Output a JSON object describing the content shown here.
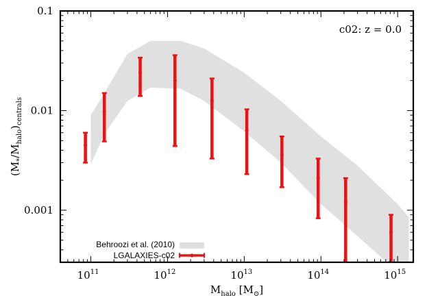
{
  "chart_data": {
    "type": "line",
    "annotation": "c02: z = 0.0",
    "xlabel": {
      "main": "M",
      "sub": "halo",
      "bracket_open": " [M",
      "sub2": "⊙",
      "bracket_close": "]"
    },
    "ylabel": {
      "open": "(M",
      "sub1": "*",
      "mid": "/M",
      "sub2": "halo",
      "close": ")",
      "sub3": "centrals"
    },
    "xscale": "log",
    "yscale": "log",
    "xlim": [
      40000000000.0,
      1600000000000000.0
    ],
    "ylim": [
      0.0003,
      0.1
    ],
    "x_ticks": [
      {
        "value": 100000000000.0,
        "base": "10",
        "exp": "11"
      },
      {
        "value": 1000000000000.0,
        "base": "10",
        "exp": "12"
      },
      {
        "value": 10000000000000.0,
        "base": "10",
        "exp": "13"
      },
      {
        "value": 100000000000000.0,
        "base": "10",
        "exp": "14"
      },
      {
        "value": 1000000000000000.0,
        "base": "10",
        "exp": "15"
      }
    ],
    "y_ticks": [
      {
        "value": 0.001,
        "label": "0.001"
      },
      {
        "value": 0.01,
        "label": "0.01"
      },
      {
        "value": 0.1,
        "label": "0.1"
      }
    ],
    "legend_position": "bottom-left",
    "band": {
      "name": "Behroozi et al. (2010)",
      "color": "#e0e0e0",
      "x": [
        100000000000.0,
        150000000000.0,
        300000000000.0,
        600000000000.0,
        1500000000000.0,
        3000000000000.0,
        10000000000000.0,
        30000000000000.0,
        100000000000000.0,
        300000000000000.0,
        1000000000000000.0,
        1400000000000000.0
      ],
      "upper": [
        0.009,
        0.015,
        0.037,
        0.05,
        0.05,
        0.042,
        0.024,
        0.0125,
        0.0055,
        0.0028,
        0.00115,
        0.00085
      ],
      "lower": [
        0.0029,
        0.0058,
        0.0125,
        0.017,
        0.0165,
        0.0125,
        0.0062,
        0.003,
        0.00115,
        0.00055,
        0.00024,
        0.00018
      ]
    },
    "series": [
      {
        "name": "LGALAXIES-c02",
        "color": "#ee1111",
        "points": [
          {
            "x": 85000000000.0,
            "y": 0.0045,
            "lo": 0.003,
            "hi": 0.006
          },
          {
            "x": 150000000000.0,
            "y": 0.0098,
            "lo": 0.0049,
            "hi": 0.015
          },
          {
            "x": 440000000000.0,
            "y": 0.024,
            "lo": 0.014,
            "hi": 0.034
          },
          {
            "x": 1250000000000.0,
            "y": 0.02,
            "lo": 0.0044,
            "hi": 0.036
          },
          {
            "x": 3800000000000.0,
            "y": 0.0125,
            "lo": 0.0033,
            "hi": 0.021
          },
          {
            "x": 10800000000000.0,
            "y": 0.0063,
            "lo": 0.0023,
            "hi": 0.0103
          },
          {
            "x": 31000000000000.0,
            "y": 0.0036,
            "lo": 0.0017,
            "hi": 0.0055
          },
          {
            "x": 92000000000000.0,
            "y": 0.0021,
            "lo": 0.00083,
            "hi": 0.0033
          },
          {
            "x": 210000000000000.0,
            "y": 0.0012,
            "lo": 0.0003,
            "hi": 0.0021
          },
          {
            "x": 820000000000000.0,
            "y": 0.0006,
            "lo": 0.0003,
            "hi": 0.0009
          }
        ]
      }
    ]
  }
}
